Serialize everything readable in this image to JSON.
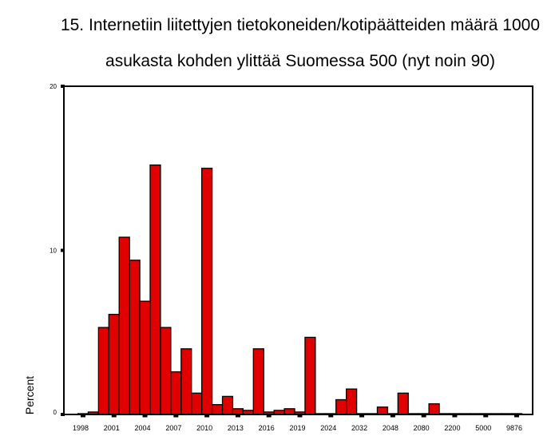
{
  "chart_data": {
    "type": "bar",
    "title": [
      "15. Internetiin liitettyjen tietokoneiden/kotipäätteiden määrä 1000",
      "asukasta kohden ylittää Suomessa 500 (nyt noin 90)"
    ],
    "xlabel": "",
    "ylabel": "Percent",
    "ylim": [
      0,
      20
    ],
    "yticks": [
      0,
      10,
      20
    ],
    "categories": [
      "1998",
      "",
      "",
      "2001",
      "",
      "",
      "2004",
      "",
      "",
      "2007",
      "",
      "",
      "2010",
      "",
      "",
      "2013",
      "",
      "",
      "2016",
      "",
      "",
      "2019",
      "",
      "",
      "2024",
      "",
      "",
      "2032",
      "",
      "",
      "2048",
      "",
      "",
      "2080",
      "",
      "",
      "2200",
      "",
      "",
      "5000",
      "",
      "",
      "9876"
    ],
    "values": [
      0.05,
      0.15,
      5.3,
      6.1,
      10.8,
      9.4,
      6.9,
      15.2,
      5.3,
      2.6,
      4.0,
      1.3,
      15.0,
      0.6,
      1.1,
      0.35,
      0.25,
      4.0,
      0.15,
      0.25,
      0.35,
      0.15,
      4.7,
      0.05,
      0.05,
      0.9,
      1.55,
      0.05,
      0.05,
      0.45,
      0.05,
      1.3,
      0.05,
      0.05,
      0.65,
      0.05,
      0.05,
      0.05,
      0.05,
      0.05,
      0.05,
      0.05,
      0.05
    ],
    "grid": false,
    "legend": "none",
    "colors": {
      "bar": "#e00000",
      "outline": "#000000",
      "frame": "#000000"
    }
  }
}
